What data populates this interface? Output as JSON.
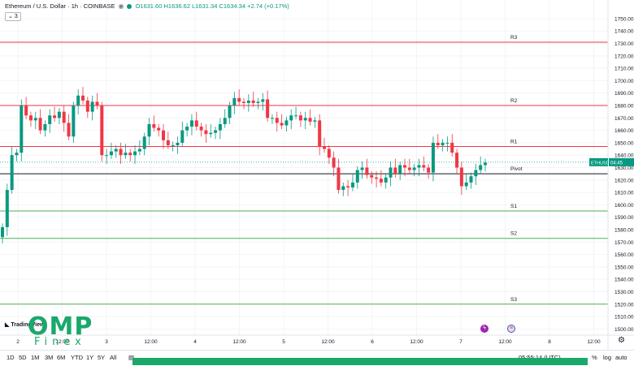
{
  "header": {
    "title": "Ethereum / U.S. Dollar · 1h · COINBASE",
    "ohlc": "O1631.60 H1636.62 L1631.34 C1634.34 +2.74 (+0.17%)",
    "indicator_count": "3"
  },
  "watermark": {
    "brand": "OMP",
    "sub": "Finex",
    "tv": "TradingView"
  },
  "timeframes": [
    "1D",
    "5D",
    "1M",
    "3M",
    "6M",
    "YTD",
    "1Y",
    "5Y",
    "All"
  ],
  "status": {
    "time": "05:55:14 (UTC)",
    "percent": "%",
    "log": "log",
    "auto": "auto"
  },
  "colors": {
    "up": "#089981",
    "down": "#f23645",
    "resistance": "#f23645",
    "support": "#4caf50",
    "pivot": "#131722",
    "brand": "#1aa86b"
  },
  "icons": {
    "settings": "gear-icon",
    "calendar": "calendar-icon",
    "event1": "lightning-icon",
    "event2": "flag-us-icon"
  },
  "chart_data": {
    "type": "candlestick",
    "title": "Ethereum / U.S. Dollar · 1h · COINBASE",
    "ylim": [
      1495,
      1765
    ],
    "y_ticks": [
      1500,
      1510,
      1520,
      1530,
      1540,
      1550,
      1560,
      1570,
      1580,
      1590,
      1600,
      1610,
      1620,
      1630,
      1640,
      1650,
      1660,
      1670,
      1680,
      1690,
      1700,
      1710,
      1720,
      1730,
      1740,
      1750
    ],
    "x_ticks": [
      "2",
      "12:00",
      "3",
      "12:00",
      "4",
      "12:00",
      "5",
      "12:00",
      "6",
      "12:00",
      "7",
      "12:00",
      "8",
      "12:00"
    ],
    "price_label": {
      "symbol": "ETHUSD",
      "countdown": "04:45",
      "value": 1634.34
    },
    "levels": [
      {
        "name": "R3",
        "value": 1731,
        "kind": "resistance"
      },
      {
        "name": "R2",
        "value": 1680,
        "kind": "resistance"
      },
      {
        "name": "R1",
        "value": 1647,
        "kind": "resistance"
      },
      {
        "name": "Pivot",
        "value": 1625,
        "kind": "pivot"
      },
      {
        "name": "S1",
        "value": 1595,
        "kind": "support"
      },
      {
        "name": "S2",
        "value": 1573,
        "kind": "support"
      },
      {
        "name": "S3",
        "value": 1520,
        "kind": "support"
      }
    ],
    "close": [
      1582,
      1612,
      1640,
      1642,
      1680,
      1672,
      1668,
      1670,
      1660,
      1665,
      1672,
      1670,
      1675,
      1666,
      1655,
      1680,
      1688,
      1684,
      1675,
      1683,
      1680,
      1640,
      1640,
      1643,
      1645,
      1640,
      1642,
      1640,
      1643,
      1645,
      1655,
      1665,
      1662,
      1660,
      1652,
      1648,
      1648,
      1650,
      1660,
      1663,
      1668,
      1663,
      1660,
      1657,
      1658,
      1660,
      1665,
      1670,
      1680,
      1686,
      1683,
      1682,
      1684,
      1682,
      1683,
      1685,
      1670,
      1670,
      1666,
      1664,
      1668,
      1672,
      1672,
      1668,
      1670,
      1667,
      1668,
      1647,
      1645,
      1638,
      1630,
      1612,
      1615,
      1614,
      1618,
      1628,
      1630,
      1624,
      1622,
      1621,
      1618,
      1622,
      1630,
      1625,
      1632,
      1630,
      1628,
      1630,
      1632,
      1630,
      1626,
      1650,
      1648,
      1650,
      1650,
      1642,
      1630,
      1615,
      1618,
      1623,
      1628,
      1632,
      1634
    ]
  }
}
